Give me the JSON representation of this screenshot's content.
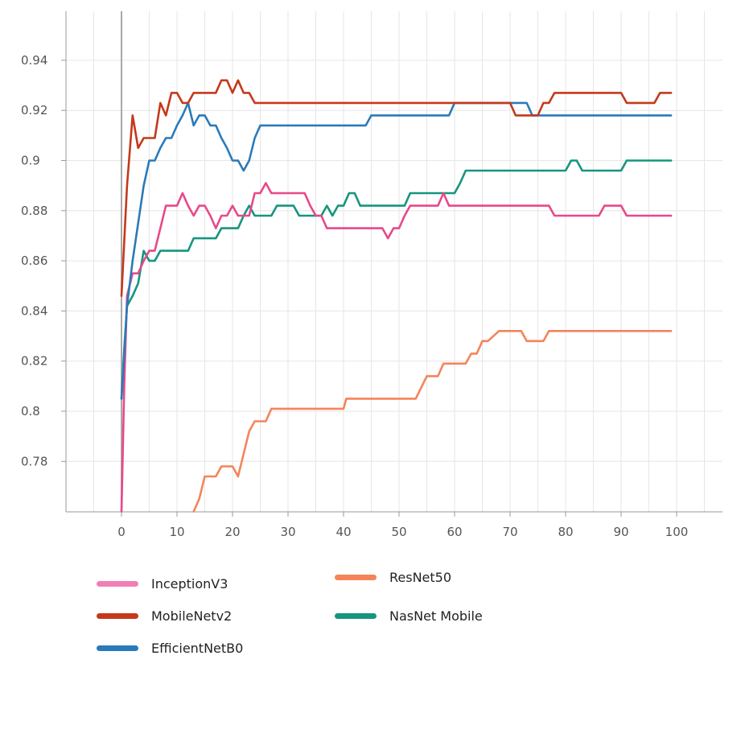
{
  "chart_data": {
    "type": "line",
    "title": "",
    "xlabel": "",
    "ylabel": "",
    "xlim": [
      -10,
      105
    ],
    "ylim": [
      0.76,
      0.96
    ],
    "x_ticks": [
      0,
      10,
      20,
      30,
      40,
      50,
      60,
      70,
      80,
      90,
      100
    ],
    "x_tick_labels": [
      "0",
      "10",
      "20",
      "30",
      "40",
      "50",
      "60",
      "70",
      "80",
      "90",
      "100"
    ],
    "y_ticks": [
      0.78,
      0.8,
      0.82,
      0.84,
      0.86,
      0.88,
      0.9,
      0.92,
      0.94
    ],
    "y_tick_labels": [
      "0.78",
      "0.8",
      "0.82",
      "0.84",
      "0.86",
      "0.88",
      "0.9",
      "0.92",
      "0.94"
    ],
    "grid": true,
    "legend_position": "bottom-left",
    "series": [
      {
        "name": "ResNet50",
        "color": "#f4845a",
        "points": [
          [
            13,
            0.76
          ],
          [
            14,
            0.765
          ],
          [
            15,
            0.774
          ],
          [
            17,
            0.774
          ],
          [
            18,
            0.778
          ],
          [
            20,
            0.778
          ],
          [
            21,
            0.774
          ],
          [
            22,
            0.783
          ],
          [
            23,
            0.792
          ],
          [
            24,
            0.796
          ],
          [
            26,
            0.796
          ],
          [
            27,
            0.801
          ],
          [
            40,
            0.801
          ],
          [
            40.5,
            0.805
          ],
          [
            53,
            0.805
          ],
          [
            55,
            0.814
          ],
          [
            57,
            0.814
          ],
          [
            58,
            0.819
          ],
          [
            62,
            0.819
          ],
          [
            63,
            0.823
          ],
          [
            64,
            0.823
          ],
          [
            65,
            0.828
          ],
          [
            66,
            0.828
          ],
          [
            68,
            0.832
          ],
          [
            72,
            0.832
          ],
          [
            73,
            0.828
          ],
          [
            76,
            0.828
          ],
          [
            77,
            0.832
          ],
          [
            99,
            0.832
          ]
        ]
      },
      {
        "name": "NasNet Mobile",
        "color": "#16957e",
        "points": [
          [
            0,
            0.805
          ],
          [
            0.5,
            0.825
          ],
          [
            1,
            0.842
          ],
          [
            2,
            0.846
          ],
          [
            3,
            0.851
          ],
          [
            4,
            0.864
          ],
          [
            5,
            0.86
          ],
          [
            6,
            0.86
          ],
          [
            7,
            0.864
          ],
          [
            12,
            0.864
          ],
          [
            13,
            0.869
          ],
          [
            17,
            0.869
          ],
          [
            18,
            0.873
          ],
          [
            21,
            0.873
          ],
          [
            22,
            0.878
          ],
          [
            23,
            0.882
          ],
          [
            24,
            0.878
          ],
          [
            27,
            0.878
          ],
          [
            28,
            0.882
          ],
          [
            31,
            0.882
          ],
          [
            32,
            0.878
          ],
          [
            36,
            0.878
          ],
          [
            37,
            0.882
          ],
          [
            38,
            0.878
          ],
          [
            39,
            0.882
          ],
          [
            40,
            0.882
          ],
          [
            41,
            0.887
          ],
          [
            42,
            0.887
          ],
          [
            43,
            0.882
          ],
          [
            51,
            0.882
          ],
          [
            52,
            0.887
          ],
          [
            60,
            0.887
          ],
          [
            61,
            0.891
          ],
          [
            62,
            0.896
          ],
          [
            80,
            0.896
          ],
          [
            81,
            0.9
          ],
          [
            82,
            0.9
          ],
          [
            83,
            0.896
          ],
          [
            90,
            0.896
          ],
          [
            91,
            0.9
          ],
          [
            99,
            0.9
          ]
        ]
      },
      {
        "name": "InceptionV3",
        "color": "#e8488a",
        "points": [
          [
            0,
            0.76
          ],
          [
            0.5,
            0.81
          ],
          [
            1,
            0.846
          ],
          [
            2,
            0.855
          ],
          [
            3,
            0.855
          ],
          [
            4,
            0.86
          ],
          [
            5,
            0.864
          ],
          [
            6,
            0.864
          ],
          [
            7,
            0.873
          ],
          [
            8,
            0.882
          ],
          [
            10,
            0.882
          ],
          [
            11,
            0.887
          ],
          [
            12,
            0.882
          ],
          [
            13,
            0.878
          ],
          [
            14,
            0.882
          ],
          [
            15,
            0.882
          ],
          [
            16,
            0.878
          ],
          [
            17,
            0.873
          ],
          [
            18,
            0.878
          ],
          [
            19,
            0.878
          ],
          [
            20,
            0.882
          ],
          [
            21,
            0.878
          ],
          [
            23,
            0.878
          ],
          [
            24,
            0.887
          ],
          [
            25,
            0.887
          ],
          [
            26,
            0.891
          ],
          [
            27,
            0.887
          ],
          [
            33,
            0.887
          ],
          [
            34,
            0.882
          ],
          [
            35,
            0.878
          ],
          [
            36,
            0.878
          ],
          [
            37,
            0.873
          ],
          [
            47,
            0.873
          ],
          [
            48,
            0.869
          ],
          [
            49,
            0.873
          ],
          [
            50,
            0.873
          ],
          [
            51,
            0.878
          ],
          [
            52,
            0.882
          ],
          [
            57,
            0.882
          ],
          [
            58,
            0.887
          ],
          [
            59,
            0.882
          ],
          [
            77,
            0.882
          ],
          [
            78,
            0.878
          ],
          [
            86,
            0.878
          ],
          [
            87,
            0.882
          ],
          [
            90,
            0.882
          ],
          [
            91,
            0.878
          ],
          [
            99,
            0.878
          ]
        ]
      },
      {
        "name": "EfficientNetB0",
        "color": "#2a7ab9",
        "points": [
          [
            0,
            0.805
          ],
          [
            1,
            0.842
          ],
          [
            2,
            0.86
          ],
          [
            3,
            0.875
          ],
          [
            4,
            0.89
          ],
          [
            5,
            0.9
          ],
          [
            6,
            0.9
          ],
          [
            7,
            0.905
          ],
          [
            8,
            0.909
          ],
          [
            9,
            0.909
          ],
          [
            10,
            0.914
          ],
          [
            11,
            0.918
          ],
          [
            12,
            0.923
          ],
          [
            13,
            0.914
          ],
          [
            14,
            0.918
          ],
          [
            15,
            0.918
          ],
          [
            16,
            0.914
          ],
          [
            17,
            0.914
          ],
          [
            18,
            0.909
          ],
          [
            19,
            0.905
          ],
          [
            20,
            0.9
          ],
          [
            21,
            0.9
          ],
          [
            22,
            0.896
          ],
          [
            23,
            0.9
          ],
          [
            24,
            0.909
          ],
          [
            25,
            0.914
          ],
          [
            44,
            0.914
          ],
          [
            45,
            0.918
          ],
          [
            59,
            0.918
          ],
          [
            60,
            0.923
          ],
          [
            73,
            0.923
          ],
          [
            74,
            0.918
          ],
          [
            99,
            0.918
          ]
        ]
      },
      {
        "name": "MobileNetv2",
        "color": "#c4391b",
        "points": [
          [
            0,
            0.846
          ],
          [
            1,
            0.89
          ],
          [
            2,
            0.918
          ],
          [
            3,
            0.905
          ],
          [
            4,
            0.909
          ],
          [
            6,
            0.909
          ],
          [
            7,
            0.923
          ],
          [
            8,
            0.918
          ],
          [
            9,
            0.927
          ],
          [
            10,
            0.927
          ],
          [
            11,
            0.923
          ],
          [
            12,
            0.923
          ],
          [
            13,
            0.927
          ],
          [
            17,
            0.927
          ],
          [
            18,
            0.932
          ],
          [
            19,
            0.932
          ],
          [
            20,
            0.927
          ],
          [
            21,
            0.932
          ],
          [
            22,
            0.927
          ],
          [
            23,
            0.927
          ],
          [
            24,
            0.923
          ],
          [
            70,
            0.923
          ],
          [
            71,
            0.918
          ],
          [
            75,
            0.918
          ],
          [
            76,
            0.923
          ],
          [
            77,
            0.923
          ],
          [
            78,
            0.927
          ],
          [
            90,
            0.927
          ],
          [
            91,
            0.923
          ],
          [
            96,
            0.923
          ],
          [
            97,
            0.927
          ],
          [
            99,
            0.927
          ]
        ]
      }
    ]
  },
  "legend": {
    "items": [
      {
        "label": "InceptionV3",
        "color": "#f07fb4"
      },
      {
        "label": "MobileNetv2",
        "color": "#c4391b"
      },
      {
        "label": "EfficientNetB0",
        "color": "#2a7ab9"
      },
      {
        "label": "ResNet50",
        "color": "#f4845a"
      },
      {
        "label": "NasNet Mobile",
        "color": "#16957e"
      }
    ]
  }
}
